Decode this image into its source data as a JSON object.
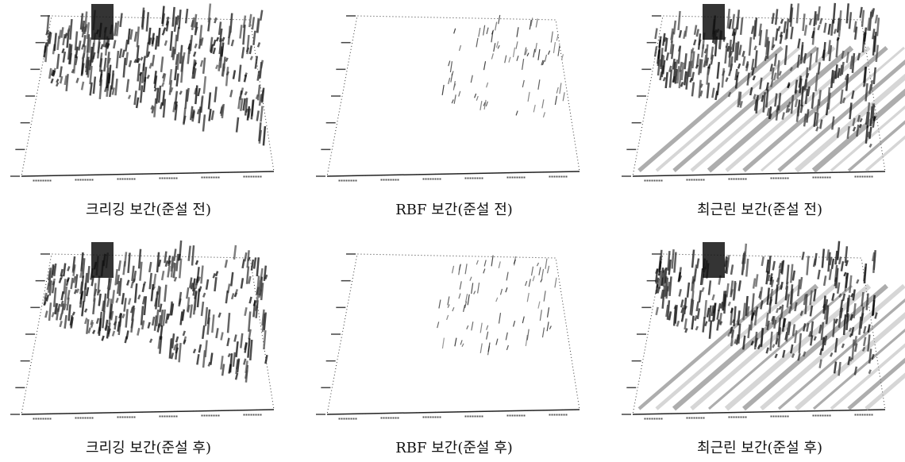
{
  "figures": [
    {
      "caption": "크리깅 보간(준설 전)"
    },
    {
      "caption": "RBF 보간(준설 전)"
    },
    {
      "caption": "최근린 보간(준설 전)"
    },
    {
      "caption": "크리깅 보간(준설 후)"
    },
    {
      "caption": "RBF 보간(준설 후)"
    },
    {
      "caption": "최근린 보간(준설 후)"
    }
  ]
}
